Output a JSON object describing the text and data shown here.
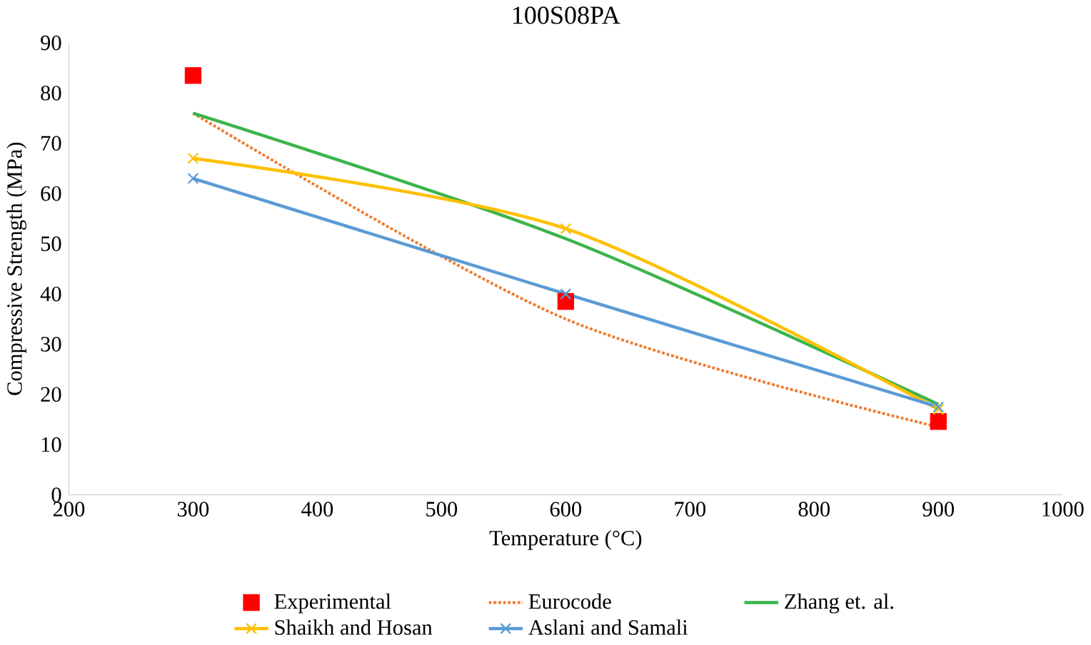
{
  "chart_data": {
    "type": "line",
    "title": "100S08PA",
    "xlabel": "Temperature (°C)",
    "ylabel": "Compressive Strength (MPa)",
    "x": [
      300,
      600,
      900
    ],
    "series": [
      {
        "name": "Experimental",
        "type": "scatter",
        "marker": "square",
        "color": "#ff0000",
        "values": [
          83.5,
          38.5,
          14.6
        ]
      },
      {
        "name": "Eurocode",
        "color": "#ed7d31",
        "line_style": "dotted",
        "marker": "none",
        "values": [
          76,
          35,
          13.5
        ]
      },
      {
        "name": "Zhang et. al.",
        "color": "#3cb44b",
        "marker": "none",
        "values": [
          76,
          51,
          18
        ]
      },
      {
        "name": "Shaikh and Hosan",
        "color": "#ffc000",
        "marker": "cross",
        "values": [
          67,
          53,
          17
        ]
      },
      {
        "name": "Aslani and Samali",
        "color": "#5b9bd5",
        "marker": "cross",
        "values": [
          63,
          40,
          17.5
        ]
      }
    ],
    "xlim": [
      200,
      1000
    ],
    "xticks": [
      200,
      300,
      400,
      500,
      600,
      700,
      800,
      900,
      1000
    ],
    "ylim": [
      0,
      90
    ],
    "yticks": [
      0,
      10,
      20,
      30,
      40,
      50,
      60,
      70,
      80,
      90
    ],
    "grid": false,
    "legend": "bottom"
  }
}
